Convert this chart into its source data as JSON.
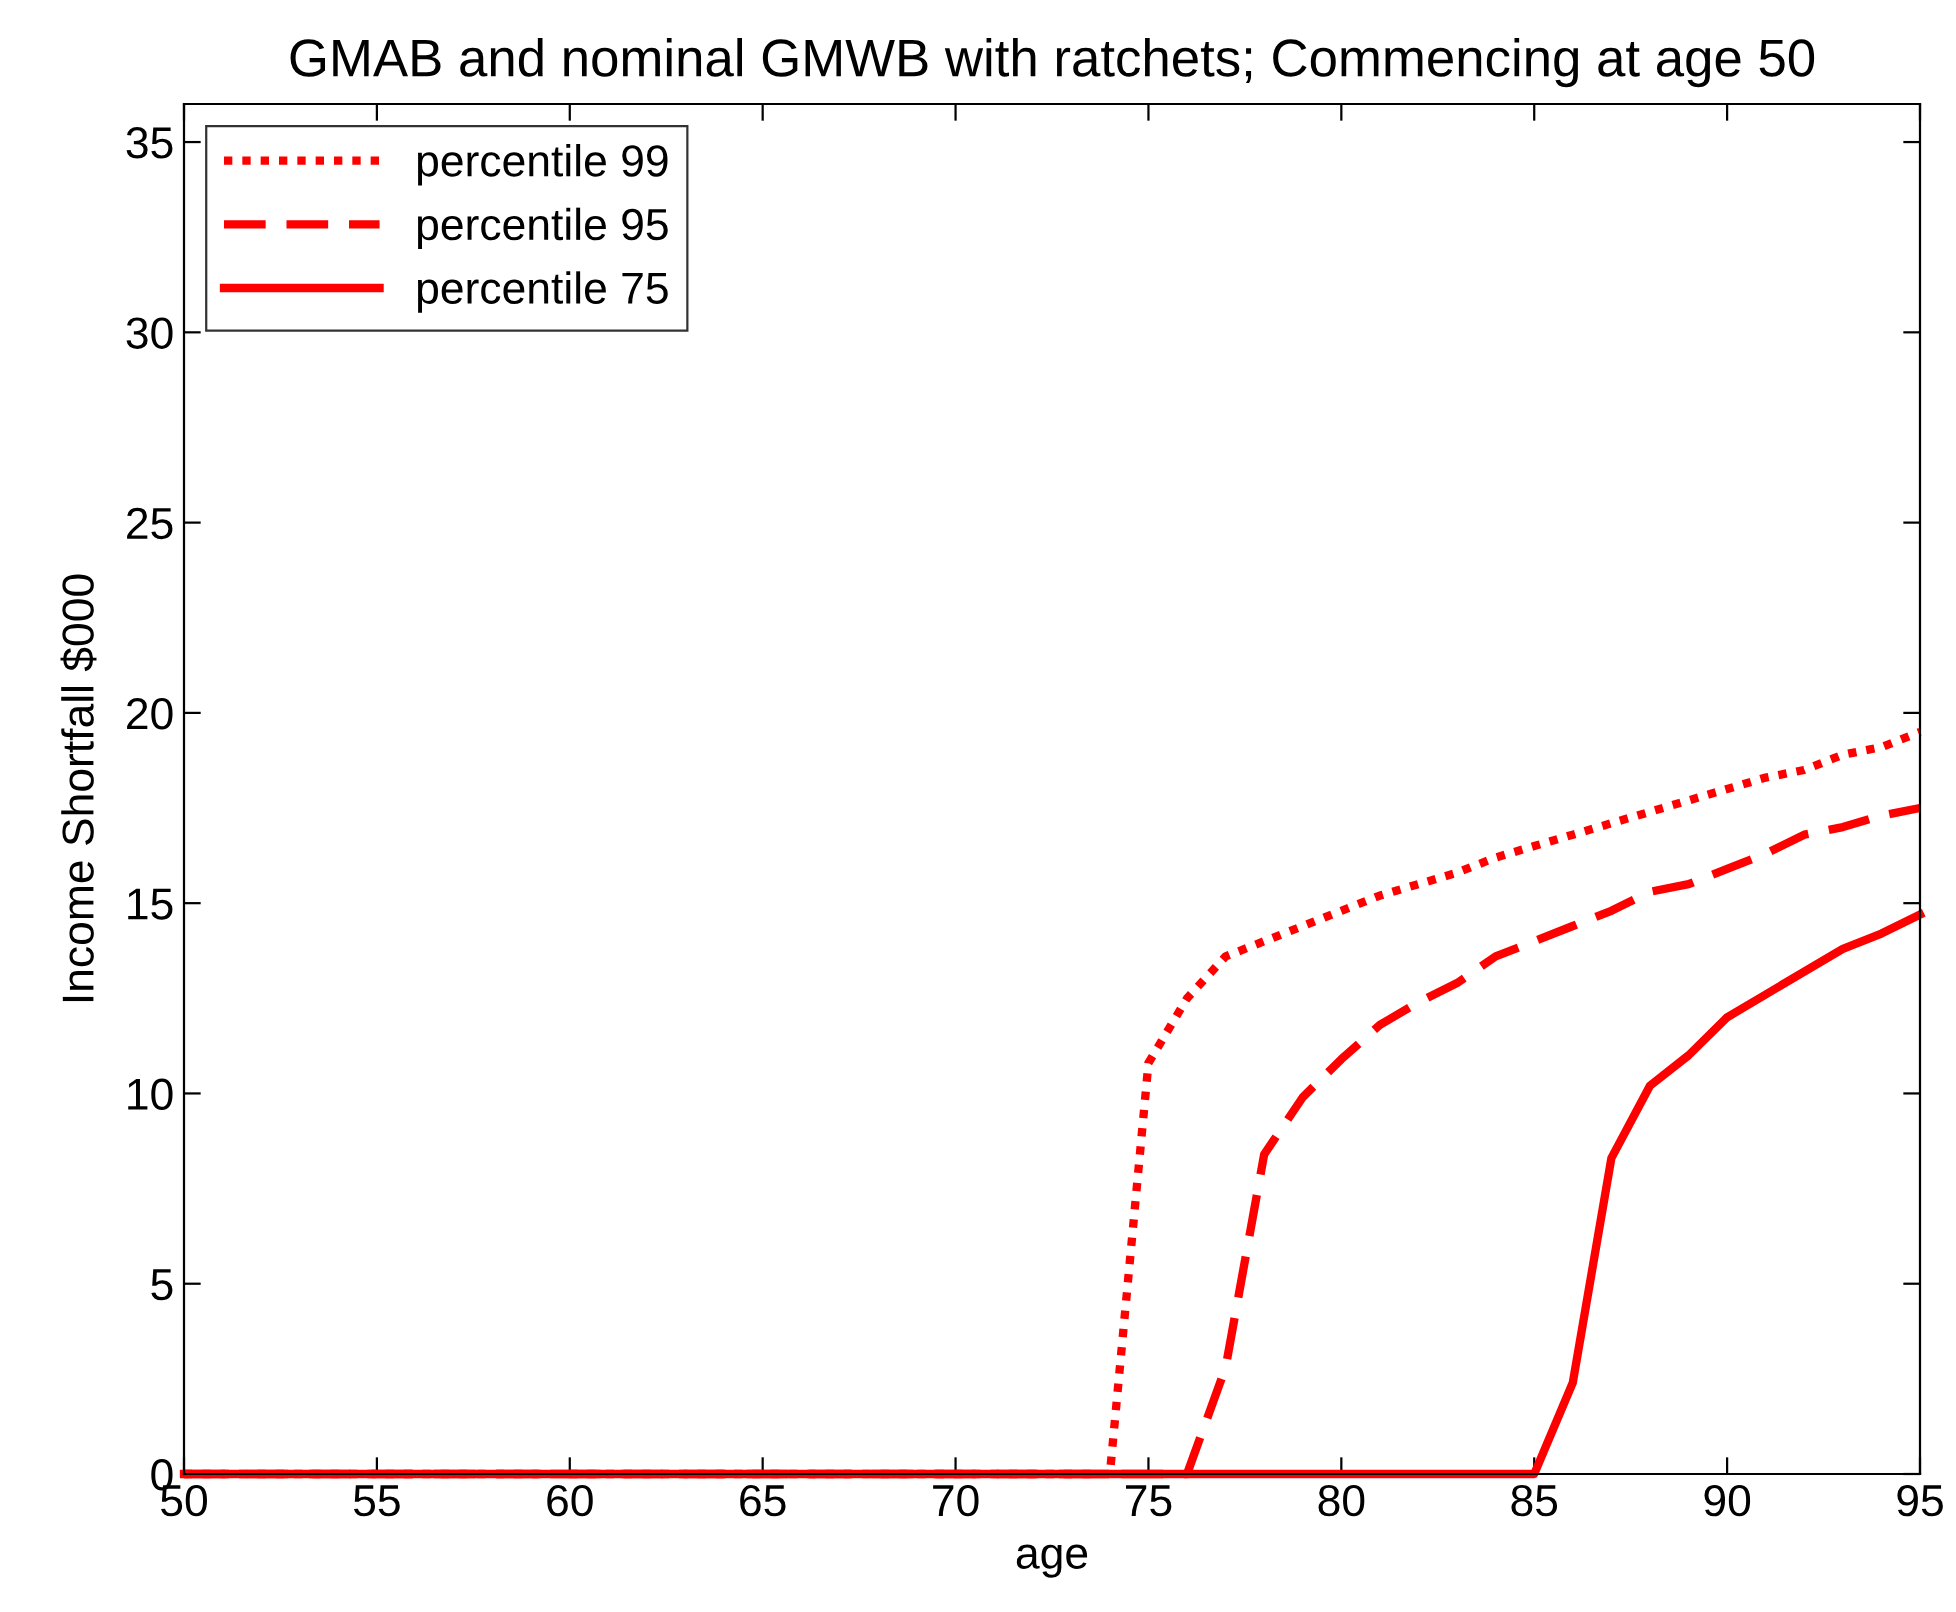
{
  "chart_data": {
    "type": "line",
    "title": "GMAB and nominal GMWB with ratchets; Commencing at age 50",
    "xlabel": "age",
    "ylabel": "Income Shortfall $000",
    "x": [
      50,
      51,
      52,
      53,
      54,
      55,
      56,
      57,
      58,
      59,
      60,
      61,
      62,
      63,
      64,
      65,
      66,
      67,
      68,
      69,
      70,
      71,
      72,
      73,
      74,
      75,
      76,
      77,
      78,
      79,
      80,
      81,
      82,
      83,
      84,
      85,
      86,
      87,
      88,
      89,
      90,
      91,
      92,
      93,
      94,
      95
    ],
    "series": [
      {
        "name": "percentile 99",
        "color": "#ff0000",
        "line_style": "dotted",
        "values": [
          0,
          0,
          0,
          0,
          0,
          0,
          0,
          0,
          0,
          0,
          0,
          0,
          0,
          0,
          0,
          0,
          0,
          0,
          0,
          0,
          0,
          0,
          0,
          0,
          0,
          10.8,
          12.5,
          13.6,
          14.0,
          14.4,
          14.8,
          15.2,
          15.5,
          15.8,
          16.2,
          16.5,
          16.8,
          17.1,
          17.4,
          17.7,
          18.0,
          18.3,
          18.5,
          18.9,
          19.1,
          19.5
        ]
      },
      {
        "name": "percentile 95",
        "color": "#ff0000",
        "line_style": "dashed",
        "values": [
          0,
          0,
          0,
          0,
          0,
          0,
          0,
          0,
          0,
          0,
          0,
          0,
          0,
          0,
          0,
          0,
          0,
          0,
          0,
          0,
          0,
          0,
          0,
          0,
          0,
          0,
          0,
          2.8,
          8.4,
          9.9,
          10.9,
          11.8,
          12.4,
          12.9,
          13.6,
          14.0,
          14.4,
          14.8,
          15.3,
          15.5,
          15.9,
          16.3,
          16.8,
          17.0,
          17.3,
          17.5
        ]
      },
      {
        "name": "percentile 75",
        "color": "#ff0000",
        "line_style": "solid",
        "values": [
          0,
          0,
          0,
          0,
          0,
          0,
          0,
          0,
          0,
          0,
          0,
          0,
          0,
          0,
          0,
          0,
          0,
          0,
          0,
          0,
          0,
          0,
          0,
          0,
          0,
          0,
          0,
          0,
          0,
          0,
          0,
          0,
          0,
          0,
          0,
          0,
          2.4,
          8.3,
          10.2,
          11.0,
          12.0,
          12.6,
          13.2,
          13.8,
          14.2,
          14.7
        ]
      }
    ],
    "xlim": [
      50,
      95
    ],
    "ylim": [
      0,
      36
    ],
    "xticks": [
      50,
      55,
      60,
      65,
      70,
      75,
      80,
      85,
      90,
      95
    ],
    "yticks": [
      0,
      5,
      10,
      15,
      20,
      25,
      30,
      35
    ],
    "grid": false,
    "legend": "top left"
  }
}
